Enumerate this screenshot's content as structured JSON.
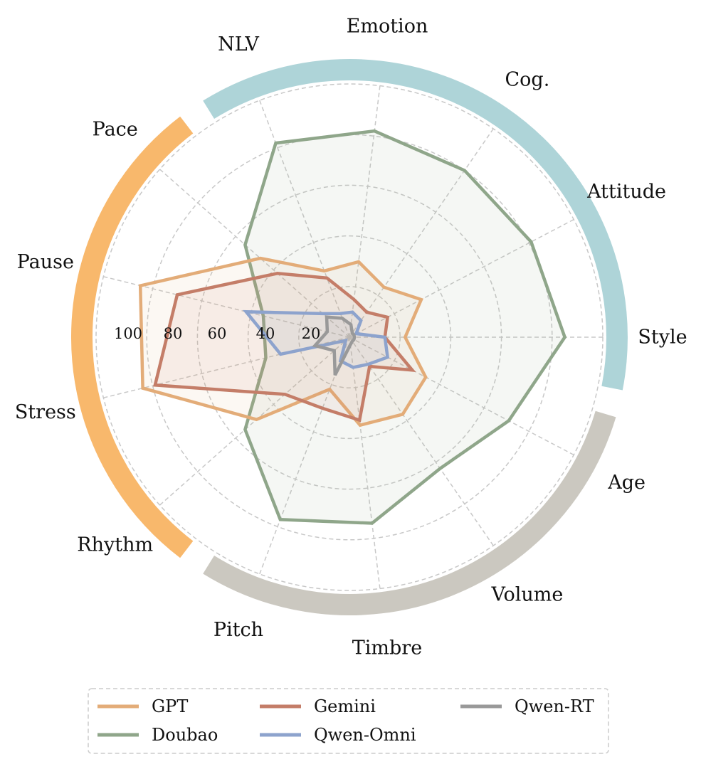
{
  "chart_data": {
    "type": "radar",
    "axes": [
      "Style",
      "Attitude",
      "Cog.",
      "Emotion",
      "NLV",
      "Pace",
      "Pause",
      "Stress",
      "Rhythm",
      "Pitch",
      "Timbre",
      "Volume",
      "Age"
    ],
    "rlim": [
      0,
      100
    ],
    "r_ticks": [
      20,
      40,
      60,
      80,
      100
    ],
    "grid": true,
    "legend": {
      "placement": "bottom",
      "columns": 3
    },
    "groups": [
      {
        "axes": [
          "Style",
          "Attitude",
          "Cog.",
          "Emotion",
          "NLV"
        ],
        "color": "#aed4d8"
      },
      {
        "axes": [
          "Pace",
          "Pause",
          "Stress",
          "Rhythm"
        ],
        "color": "#f8b86c"
      },
      {
        "axes": [
          "Pitch",
          "Timbre",
          "Volume",
          "Age"
        ],
        "color": "#cbc8c0"
      }
    ],
    "series": [
      {
        "name": "GPT",
        "color": "#e3ac78",
        "values": [
          22,
          32,
          24,
          30,
          28,
          47,
          85,
          84,
          49,
          22,
          35,
          37,
          34
        ]
      },
      {
        "name": "Gemini",
        "color": "#c47d68",
        "values": [
          14,
          17,
          12,
          15,
          25,
          38,
          70,
          79,
          34,
          30,
          33,
          14,
          28
        ]
      },
      {
        "name": "Doubao",
        "color": "#8fa68a",
        "values": [
          85,
          81,
          80,
          82,
          82,
          55,
          35,
          34,
          55,
          77,
          74,
          63,
          71
        ]
      },
      {
        "name": "Qwen-Omni",
        "color": "#8da3cd",
        "values": [
          14,
          3,
          8,
          10,
          10,
          14,
          42,
          28,
          2,
          10,
          12,
          13,
          17
        ]
      },
      {
        "name": "Qwen-RT",
        "color": "#999999",
        "values": [
          2,
          2,
          2,
          5,
          8,
          12,
          9,
          14,
          8,
          16,
          3,
          2,
          2
        ]
      }
    ]
  }
}
